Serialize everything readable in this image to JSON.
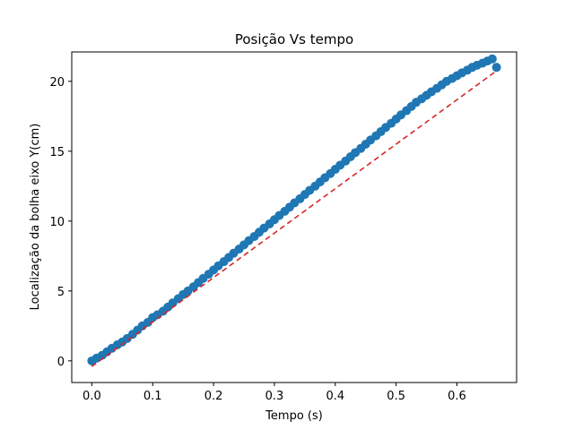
{
  "chart_data": {
    "type": "scatter",
    "title": "Posição Vs tempo",
    "xlabel": "Tempo (s)",
    "ylabel": "Localização da bolha eixo Y(cm)",
    "xlim": [
      -0.033,
      0.698
    ],
    "ylim": [
      -1.55,
      22.1
    ],
    "x_ticks": [
      0.0,
      0.1,
      0.2,
      0.3,
      0.4,
      0.5,
      0.6
    ],
    "x_tick_labels": [
      "0.0",
      "0.1",
      "0.2",
      "0.3",
      "0.4",
      "0.5",
      "0.6"
    ],
    "y_ticks": [
      0,
      5,
      10,
      15,
      20
    ],
    "y_tick_labels": [
      "0",
      "5",
      "10",
      "15",
      "20"
    ],
    "grid": false,
    "series": [
      {
        "kind": "scatter",
        "color": "#1f77b4",
        "x": [
          0.0,
          0.008,
          0.017,
          0.025,
          0.033,
          0.042,
          0.05,
          0.058,
          0.067,
          0.075,
          0.083,
          0.092,
          0.1,
          0.108,
          0.117,
          0.125,
          0.133,
          0.142,
          0.15,
          0.158,
          0.167,
          0.175,
          0.183,
          0.192,
          0.2,
          0.208,
          0.217,
          0.225,
          0.233,
          0.242,
          0.25,
          0.258,
          0.267,
          0.275,
          0.283,
          0.292,
          0.3,
          0.308,
          0.317,
          0.325,
          0.333,
          0.342,
          0.35,
          0.358,
          0.367,
          0.375,
          0.383,
          0.392,
          0.4,
          0.408,
          0.417,
          0.425,
          0.433,
          0.442,
          0.45,
          0.458,
          0.467,
          0.475,
          0.483,
          0.492,
          0.5,
          0.508,
          0.517,
          0.525,
          0.533,
          0.542,
          0.55,
          0.558,
          0.567,
          0.575,
          0.583,
          0.592,
          0.6,
          0.608,
          0.617,
          0.625,
          0.633,
          0.642,
          0.65,
          0.658,
          0.665
        ],
        "y": [
          0.0,
          0.2,
          0.4,
          0.65,
          0.9,
          1.15,
          1.35,
          1.6,
          1.9,
          2.2,
          2.5,
          2.75,
          3.1,
          3.3,
          3.55,
          3.85,
          4.15,
          4.45,
          4.75,
          5.0,
          5.3,
          5.6,
          5.9,
          6.2,
          6.5,
          6.8,
          7.1,
          7.4,
          7.7,
          8.0,
          8.3,
          8.6,
          8.9,
          9.2,
          9.5,
          9.8,
          10.1,
          10.4,
          10.7,
          11.0,
          11.3,
          11.6,
          11.9,
          12.2,
          12.5,
          12.8,
          13.1,
          13.4,
          13.7,
          14.0,
          14.3,
          14.6,
          14.9,
          15.2,
          15.5,
          15.8,
          16.1,
          16.4,
          16.7,
          17.0,
          17.3,
          17.6,
          17.9,
          18.2,
          18.5,
          18.75,
          19.0,
          19.25,
          19.5,
          19.75,
          20.0,
          20.2,
          20.4,
          20.6,
          20.8,
          21.0,
          21.15,
          21.3,
          21.45,
          21.6,
          21.0
        ]
      },
      {
        "kind": "line",
        "style": "dashed",
        "color": "#d62728",
        "x": [
          0.0,
          0.665
        ],
        "y": [
          -0.4,
          20.75
        ]
      }
    ]
  }
}
